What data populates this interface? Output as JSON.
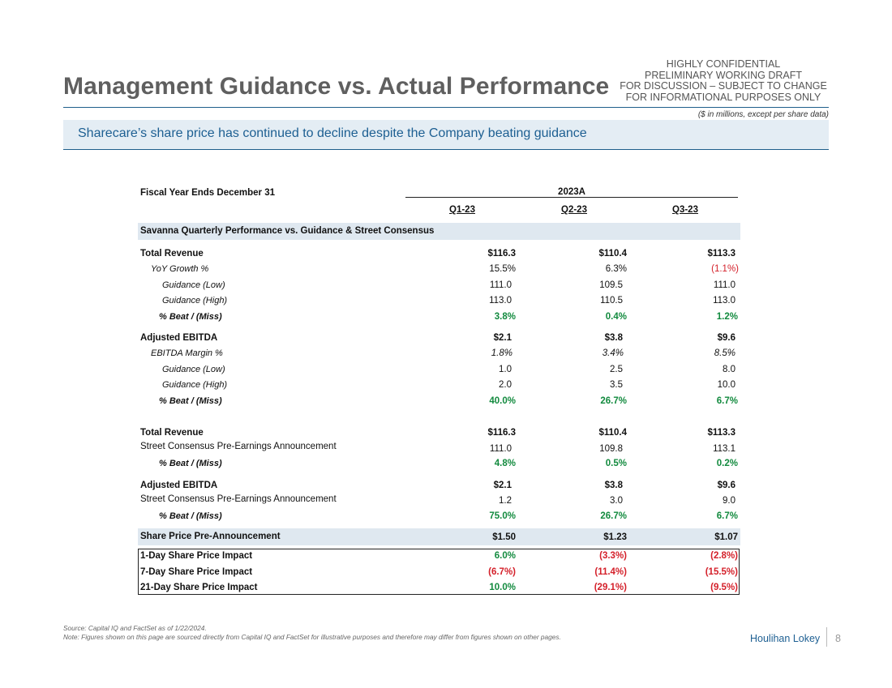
{
  "header": {
    "title": "Management Guidance vs. Actual Performance",
    "confidential_lines": [
      "HIGHLY CONFIDENTIAL",
      "PRELIMINARY WORKING DRAFT",
      "FOR DISCUSSION – SUBJECT TO CHANGE",
      "FOR INFORMATIONAL PURPOSES ONLY"
    ],
    "units_note": "($ in millions, except per share data)",
    "banner": "Sharecare’s share price has continued to decline despite the Company beating guidance"
  },
  "table": {
    "fiscal_label": "Fiscal Year Ends December 31",
    "period_header": "2023A",
    "columns": [
      "Q1-23",
      "Q2-23",
      "Q3-23"
    ],
    "section_header": "Savanna Quarterly Performance vs. Guidance & Street Consensus",
    "rows": [
      {
        "label": "Total Revenue",
        "values": [
          "$116.3",
          "$110.4",
          "$113.3"
        ]
      },
      {
        "label": "YoY Growth %",
        "values": [
          "15.5%",
          "6.3%",
          "(1.1%)"
        ]
      },
      {
        "label": "Guidance (Low)",
        "values": [
          "111.0",
          "109.5",
          "111.0"
        ]
      },
      {
        "label": "Guidance (High)",
        "values": [
          "113.0",
          "110.5",
          "113.0"
        ]
      },
      {
        "label": "% Beat / (Miss)",
        "values": [
          "3.8%",
          "0.4%",
          "1.2%"
        ]
      },
      {
        "label": "Adjusted EBITDA",
        "values": [
          "$2.1",
          "$3.8",
          "$9.6"
        ]
      },
      {
        "label": "EBITDA Margin %",
        "values": [
          "1.8%",
          "3.4%",
          "8.5%"
        ]
      },
      {
        "label": "Guidance (Low)",
        "values": [
          "1.0",
          "2.5",
          "8.0"
        ]
      },
      {
        "label": "Guidance (High)",
        "values": [
          "2.0",
          "3.5",
          "10.0"
        ]
      },
      {
        "label": "% Beat / (Miss)",
        "values": [
          "40.0%",
          "26.7%",
          "6.7%"
        ]
      },
      {
        "label": "Total Revenue",
        "values": [
          "$116.3",
          "$110.4",
          "$113.3"
        ]
      },
      {
        "label": "Street Consensus Pre-Earnings Announcement",
        "values": [
          "111.0",
          "109.8",
          "113.1"
        ]
      },
      {
        "label": "% Beat / (Miss)",
        "values": [
          "4.8%",
          "0.5%",
          "0.2%"
        ]
      },
      {
        "label": "Adjusted EBITDA",
        "values": [
          "$2.1",
          "$3.8",
          "$9.6"
        ]
      },
      {
        "label": "Street Consensus Pre-Earnings Announcement",
        "values": [
          "1.2",
          "3.0",
          "9.0"
        ]
      },
      {
        "label": "% Beat / (Miss)",
        "values": [
          "75.0%",
          "26.7%",
          "6.7%"
        ]
      },
      {
        "label": "Share Price Pre-Announcement",
        "values": [
          "$1.50",
          "$1.23",
          "$1.07"
        ]
      },
      {
        "label": "1-Day Share Price Impact",
        "values": [
          "6.0%",
          "(3.3%)",
          "(2.8%)"
        ]
      },
      {
        "label": "7-Day Share Price Impact",
        "values": [
          "(6.7%)",
          "(11.4%)",
          "(15.5%)"
        ]
      },
      {
        "label": "21-Day Share Price Impact",
        "values": [
          "10.0%",
          "(29.1%)",
          "(9.5%)"
        ]
      }
    ]
  },
  "colors": {
    "title_gray": "#5f5f5f",
    "brand_blue": "#1d5f92",
    "band_fill": "#dfe8f0",
    "positive_green": "#128a3e",
    "negative_red": "#d4202a"
  },
  "footer": {
    "source": "Source: Capital IQ and FactSet as of 1/22/2024.",
    "note": "Note: Figures shown on this page are sourced directly from Capital IQ and FactSet for illustrative purposes and therefore may differ from figures shown on other pages.",
    "brand": "Houlihan Lokey",
    "page_number": "8"
  }
}
